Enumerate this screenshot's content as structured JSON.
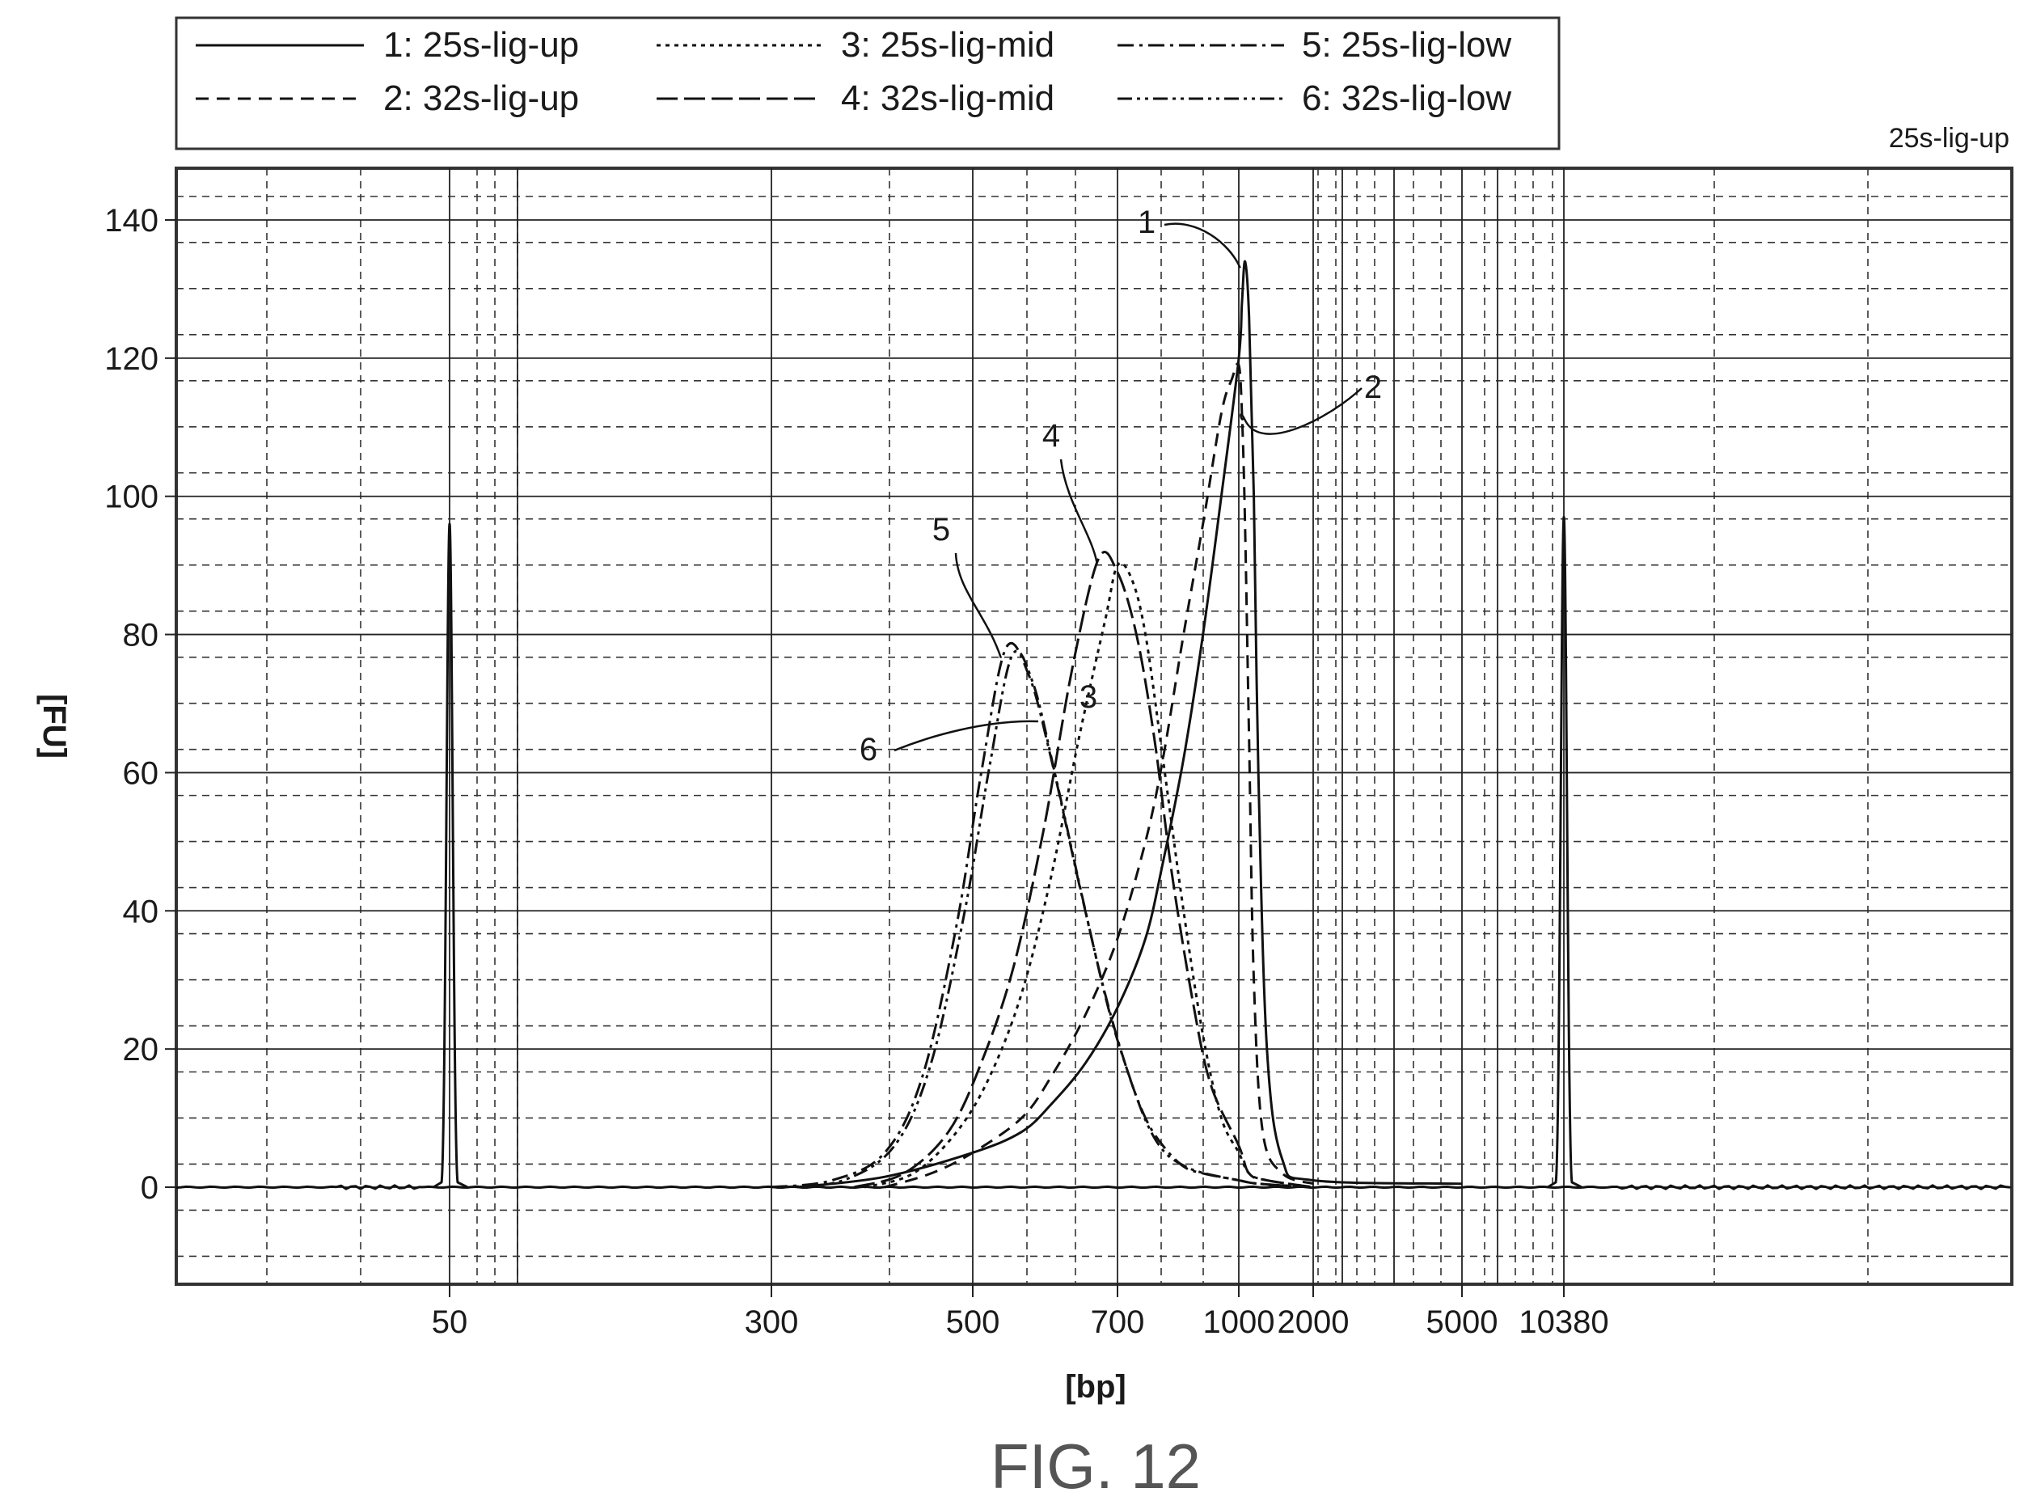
{
  "chart_data": {
    "type": "line",
    "title": "",
    "corner_label": "25s-lig-up",
    "xlabel": "[bp]",
    "ylabel": "[FU]",
    "x_ticks": [
      "50",
      "300",
      "500",
      "700",
      "1000",
      "2000",
      "5000",
      "10380"
    ],
    "y_ticks": [
      0,
      20,
      40,
      60,
      80,
      100,
      120,
      140
    ],
    "ylim": [
      -15,
      148
    ],
    "grid": true,
    "legend_position": "top-left",
    "markers": [
      {
        "x": "50",
        "peak": 96
      },
      {
        "x": "10380",
        "peak": 97
      }
    ],
    "series": [
      {
        "label": "1",
        "name": "1: 25s-lig-up",
        "dash": "solid",
        "peak": {
          "x": 1060,
          "y": 134
        },
        "x": [
          320,
          400,
          500,
          560,
          600,
          650,
          700,
          760,
          800,
          850,
          900,
          950,
          1000,
          1030,
          1060,
          1100,
          1150,
          1200,
          1300,
          1500,
          2000,
          5000
        ],
        "y": [
          0,
          1.5,
          5,
          8,
          12,
          18,
          26,
          36,
          47,
          62,
          80,
          100,
          120,
          128,
          134,
          126,
          100,
          60,
          20,
          4,
          1,
          0.5
        ]
      },
      {
        "label": "2",
        "name": "2: 32s-lig-up",
        "dash": "dashed",
        "peak": {
          "x": 1000,
          "y": 119
        },
        "x": [
          400,
          450,
          500,
          560,
          600,
          650,
          700,
          760,
          800,
          850,
          900,
          950,
          980,
          1000,
          1030,
          1060,
          1100,
          1150,
          1250,
          1500,
          2000
        ],
        "y": [
          0,
          2,
          5,
          10,
          16,
          25,
          36,
          50,
          62,
          80,
          96,
          112,
          117,
          119,
          112,
          96,
          65,
          30,
          8,
          2,
          0.5
        ]
      },
      {
        "label": "3",
        "name": "3: 25s-lig-mid",
        "dash": "dotted",
        "peak": {
          "x": 700,
          "y": 90
        },
        "x": [
          380,
          430,
          480,
          520,
          560,
          600,
          640,
          680,
          700,
          730,
          760,
          800,
          850,
          900,
          950,
          1000,
          1100,
          1300,
          2000
        ],
        "y": [
          0,
          2,
          8,
          16,
          28,
          45,
          65,
          82,
          90,
          88,
          80,
          62,
          40,
          22,
          10,
          5,
          2,
          1,
          0
        ]
      },
      {
        "label": "4",
        "name": "4: 32s-lig-mid",
        "dash": "long-dash",
        "peak": {
          "x": 670,
          "y": 91
        },
        "x": [
          370,
          420,
          470,
          510,
          550,
          590,
          630,
          670,
          700,
          740,
          780,
          820,
          870,
          920,
          1000,
          1100,
          1300,
          2000
        ],
        "y": [
          0,
          2,
          8,
          18,
          32,
          52,
          75,
          91,
          89,
          80,
          65,
          46,
          28,
          15,
          6,
          2,
          1,
          0
        ]
      },
      {
        "label": "5",
        "name": "5: 25s-lig-low",
        "dash": "dash-dot",
        "peak": {
          "x": 540,
          "y": 78
        },
        "x": [
          300,
          350,
          400,
          440,
          480,
          510,
          540,
          570,
          600,
          640,
          680,
          720,
          760,
          800,
          850,
          900,
          1000,
          1200,
          2000
        ],
        "y": [
          0,
          1,
          5,
          16,
          38,
          60,
          78,
          74,
          62,
          44,
          28,
          17,
          10,
          6,
          3,
          2,
          1,
          0.5,
          0
        ]
      },
      {
        "label": "6",
        "name": "6: 32s-lig-low",
        "dash": "dash-dot-dot",
        "peak": {
          "x": 548,
          "y": 77
        },
        "x": [
          310,
          360,
          410,
          450,
          490,
          520,
          548,
          575,
          605,
          645,
          685,
          725,
          765,
          805,
          855,
          905,
          1000,
          1200,
          2000
        ],
        "y": [
          0,
          1,
          6,
          18,
          40,
          61,
          77,
          73,
          60,
          42,
          26,
          16,
          9,
          5,
          3,
          2,
          1,
          0.5,
          0
        ]
      }
    ]
  },
  "figure_caption": "FIG. 12"
}
